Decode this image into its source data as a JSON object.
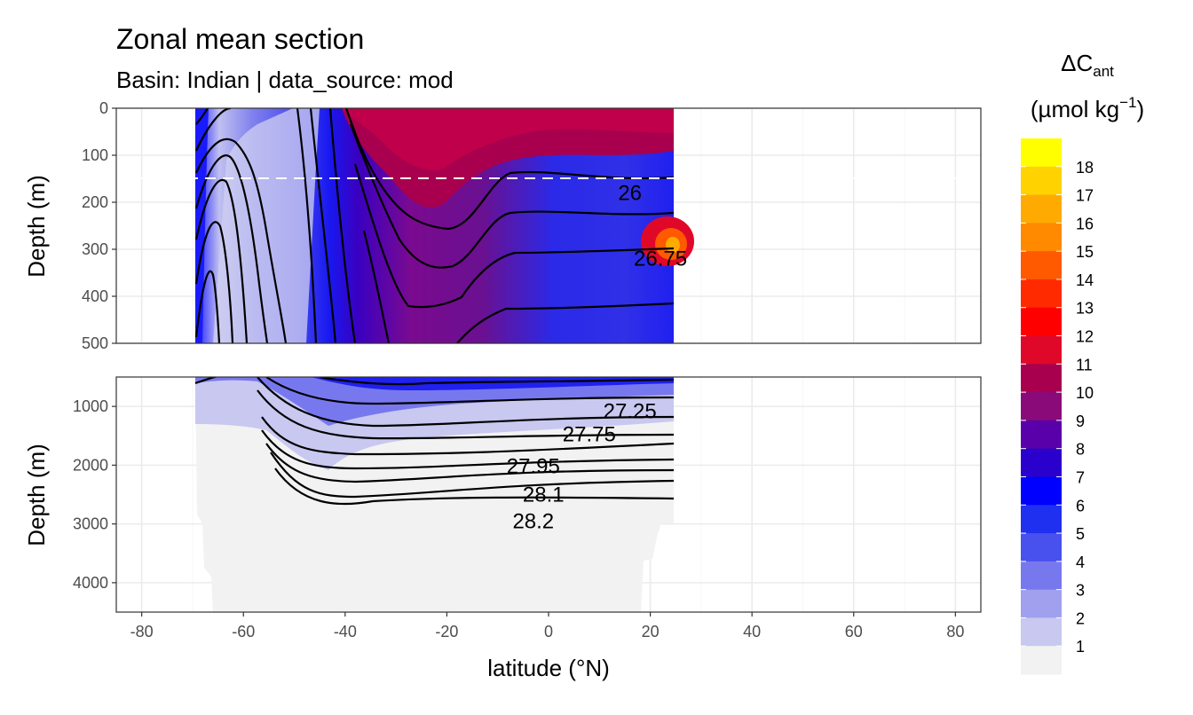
{
  "chart_data": {
    "type": "contour",
    "title": "Zonal mean section",
    "subtitle": "Basin: Indian | data_source: mod",
    "xlabel": "latitude (°N)",
    "ylabel": "Depth (m)",
    "xlim": [
      -85,
      85
    ],
    "x_ticks": [
      "-80",
      "-60",
      "-40",
      "-20",
      "0",
      "20",
      "40",
      "60",
      "80"
    ],
    "data_lat_range": [
      -69.5,
      24.5
    ],
    "panels": [
      {
        "name": "upper",
        "ylim": [
          0,
          500
        ],
        "y_ticks": [
          "0",
          "100",
          "200",
          "300",
          "400",
          "500"
        ],
        "reference_line_depth": 150,
        "contour_labels": [
          {
            "text": "26",
            "lat": 16,
            "depth": 180
          },
          {
            "text": "26.75",
            "lat": 22,
            "depth": 320
          }
        ]
      },
      {
        "name": "lower",
        "ylim": [
          500,
          4500
        ],
        "y_ticks": [
          "1000",
          "2000",
          "3000",
          "4000"
        ],
        "contour_labels": [
          {
            "text": "27.25",
            "lat": 16,
            "depth": 1080
          },
          {
            "text": "27.75",
            "lat": 8,
            "depth": 1470
          },
          {
            "text": "27.95",
            "lat": -3,
            "depth": 2020
          },
          {
            "text": "28.1",
            "lat": -1,
            "depth": 2500
          },
          {
            "text": "28.2",
            "lat": -3,
            "depth": 2950
          }
        ]
      }
    ],
    "legend": {
      "title_main": "ΔC",
      "title_sub": "ant",
      "units_main": "(µmol kg",
      "units_sup": "−1",
      "units_end": ")",
      "labels": [
        "18",
        "17",
        "16",
        "15",
        "14",
        "13",
        "12",
        "11",
        "10",
        "9",
        "8",
        "7",
        "6",
        "5",
        "4",
        "3",
        "2",
        "1"
      ],
      "colors": [
        "#ffff00",
        "#ffd200",
        "#ffaa00",
        "#ff8a00",
        "#ff5a00",
        "#ff2a00",
        "#ff0000",
        "#e00828",
        "#a8004e",
        "#8a0a7a",
        "#5a00aa",
        "#2a00cc",
        "#0000ff",
        "#2030f0",
        "#4850ee",
        "#7878ee",
        "#a0a0ee",
        "#c8c8f0",
        "#f2f2f2"
      ]
    }
  }
}
